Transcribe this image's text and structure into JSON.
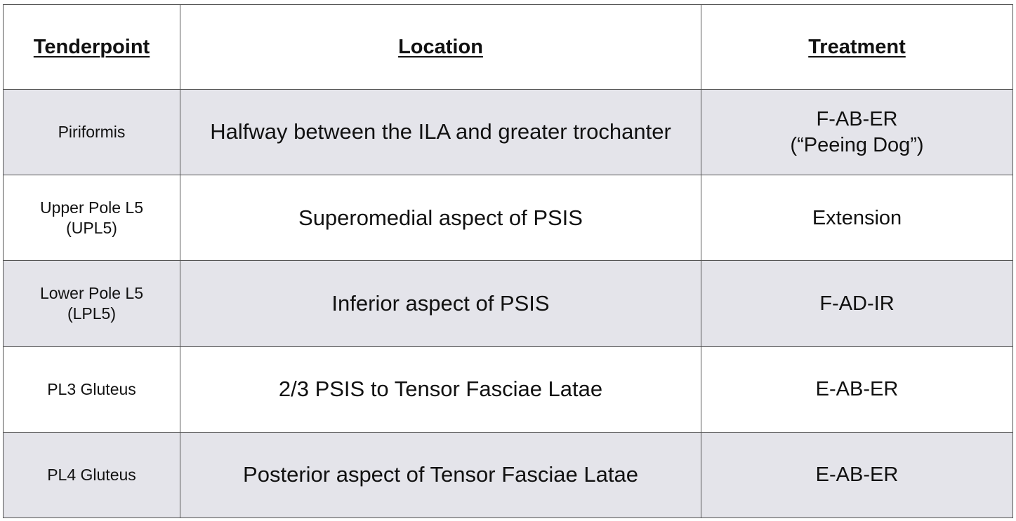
{
  "table": {
    "headers": {
      "tenderpoint": "Tenderpoint",
      "location": "Location",
      "treatment": "Treatment"
    },
    "rows": [
      {
        "tenderpoint": [
          "Piriformis"
        ],
        "location": "Halfway between the ILA and greater trochanter",
        "treatment": [
          "F-AB-ER",
          "(“Peeing Dog”)"
        ]
      },
      {
        "tenderpoint": [
          "Upper Pole L5",
          "(UPL5)"
        ],
        "location": "Superomedial aspect of PSIS",
        "treatment": [
          "Extension"
        ]
      },
      {
        "tenderpoint": [
          "Lower Pole L5",
          "(LPL5)"
        ],
        "location": "Inferior aspect of PSIS",
        "treatment": [
          "F-AD-IR"
        ]
      },
      {
        "tenderpoint": [
          "PL3 Gluteus"
        ],
        "location": "2/3 PSIS to Tensor Fasciae Latae",
        "treatment": [
          "E-AB-ER"
        ]
      },
      {
        "tenderpoint": [
          "PL4 Gluteus"
        ],
        "location": "Posterior aspect of Tensor Fasciae Latae",
        "treatment": [
          "E-AB-ER"
        ]
      }
    ]
  },
  "colors": {
    "shaded_row": "#e4e4ea",
    "plain_row": "#ffffff",
    "border": "#555555",
    "text": "#111111"
  }
}
